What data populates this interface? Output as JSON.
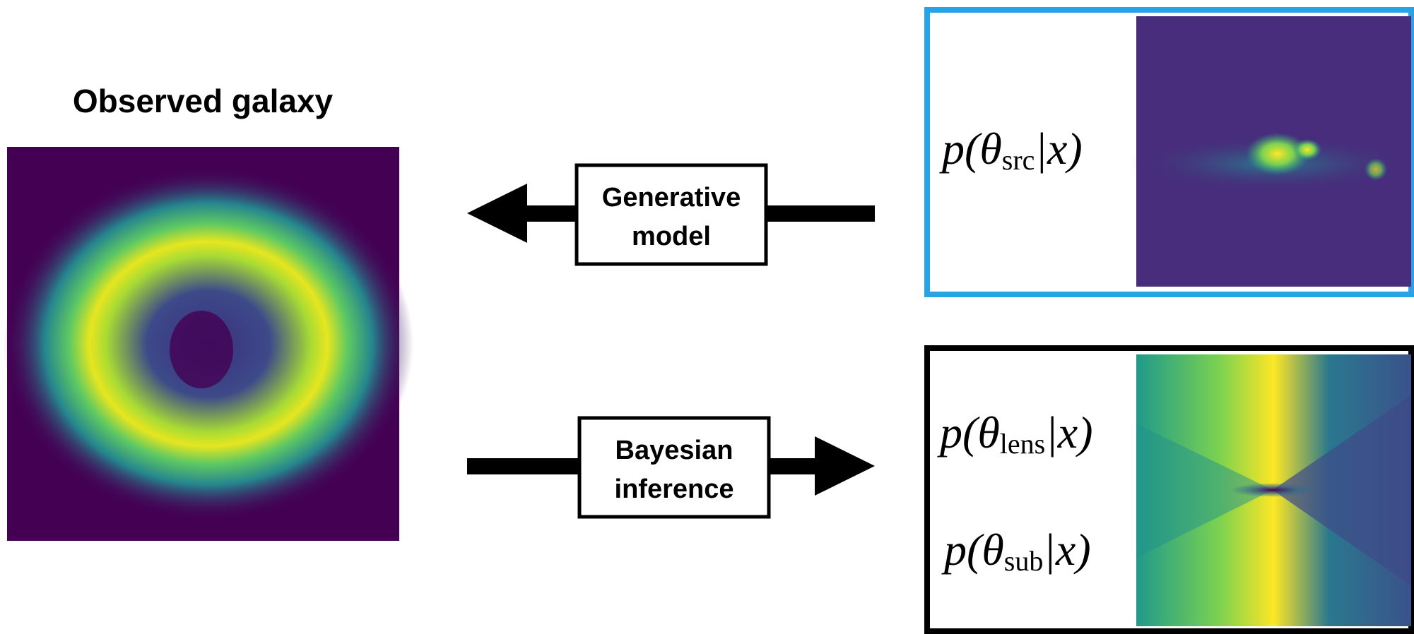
{
  "title": "Observed galaxy",
  "arrows": [
    {
      "label": [
        "Generative",
        "model"
      ]
    },
    {
      "label": [
        "Bayesian",
        "inference"
      ]
    }
  ],
  "panels": [
    {
      "posteriors": [
        {
          "lead": "p(θ",
          "sub": "src",
          "tail": "|x)"
        }
      ]
    },
    {
      "posteriors": [
        {
          "lead": "p(θ",
          "sub": "lens",
          "tail": "|x)"
        },
        {
          "lead": "p(θ",
          "sub": "sub",
          "tail": "|x)"
        }
      ]
    }
  ]
}
